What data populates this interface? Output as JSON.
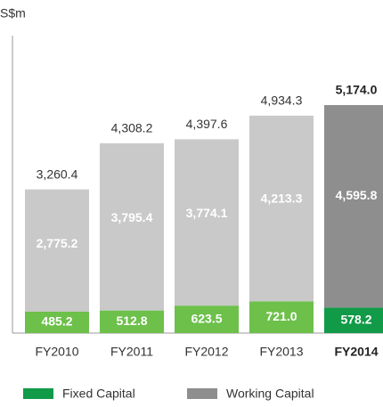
{
  "chart_data": {
    "type": "stacked_bar",
    "y_label": "S$m",
    "categories": [
      "FY2010",
      "FY2011",
      "FY2012",
      "FY2013",
      "FY2014"
    ],
    "series": [
      {
        "name": "Fixed Capital",
        "color": "#119a48",
        "bar_colors": [
          "#6dc04a",
          "#6dc04a",
          "#6dc04a",
          "#6dc04a",
          "#119a48"
        ],
        "values": [
          485.2,
          512.8,
          623.5,
          721.0,
          578.2
        ],
        "value_labels": [
          "485.2",
          "512.8",
          "623.5",
          "721.0",
          "578.2"
        ]
      },
      {
        "name": "Working Capital",
        "color": "#8e8e8e",
        "bar_colors": [
          "#c9c9c9",
          "#c9c9c9",
          "#c9c9c9",
          "#c9c9c9",
          "#8e8e8e"
        ],
        "values": [
          2775.2,
          3795.4,
          3774.1,
          4213.3,
          4595.8
        ],
        "value_labels": [
          "2,775.2",
          "3,795.4",
          "3,774.1",
          "4,213.3",
          "4,595.8"
        ]
      }
    ],
    "totals": [
      3260.4,
      4308.2,
      4397.6,
      4934.3,
      5174.0
    ],
    "total_labels": [
      "3,260.4",
      "4,308.2",
      "4,397.6",
      "4,934.3",
      "5,174.0"
    ],
    "highlight_index": 4,
    "ylim": [
      0,
      6750
    ]
  }
}
